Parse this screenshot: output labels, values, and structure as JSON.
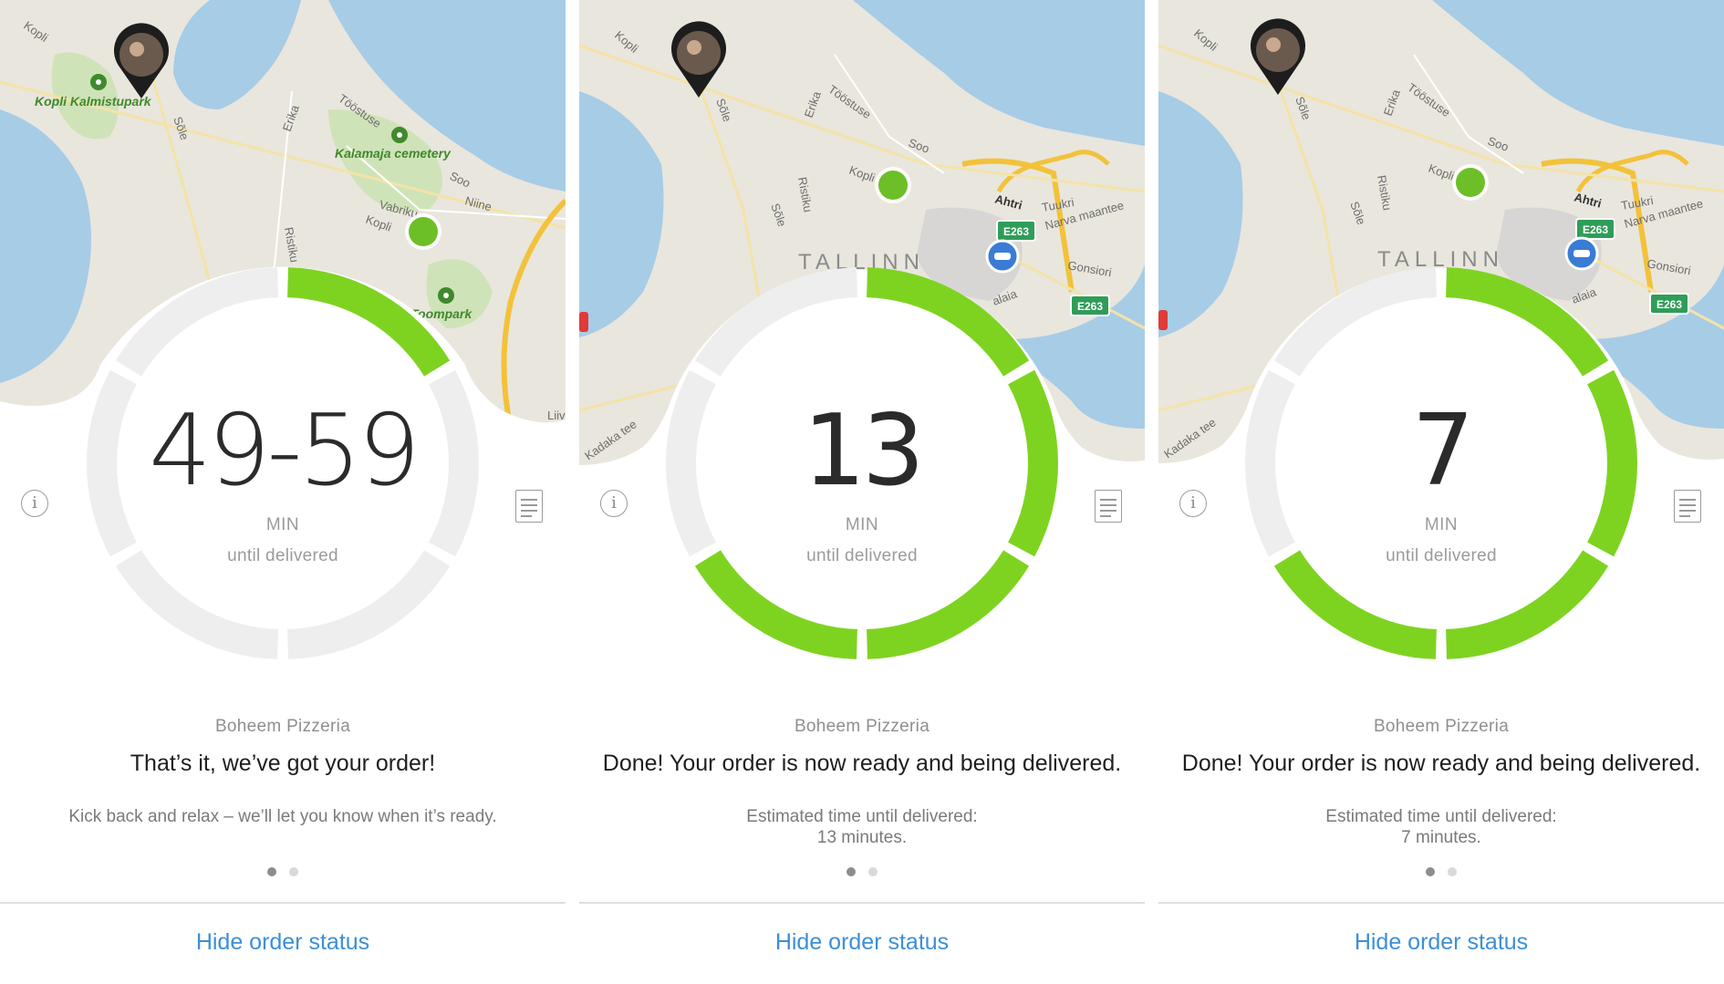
{
  "app": {
    "accent_green": "#7ed321",
    "link_blue": "#3d8fd6",
    "hide_label": "Hide order status",
    "unit_label": "MIN",
    "until_label": "until delivered",
    "info_icon_glyph": "i"
  },
  "panels": [
    {
      "time_value": "49-59",
      "progress": 0.167,
      "restaurant": "Boheem Pizzeria",
      "headline": "That’s it, we’ve got your order!",
      "subtext": [
        "Kick back and relax – we’ll let you know when it’s ready."
      ],
      "page_index": 0,
      "map": {
        "labels": [
          "Kopli",
          "Kopli Kalmistupark",
          "Sõle",
          "Erika",
          "Tööstuse",
          "Kalamaja cemetery",
          "Soo",
          "Niine",
          "Vabriku",
          "Kopli",
          "Ristiku",
          "Toompark",
          "Liiv"
        ],
        "icons": [
          "courier-avatar-pin-icon",
          "destination-dot-icon",
          "park-marker-icon"
        ]
      }
    },
    {
      "time_value": "13",
      "progress": 0.667,
      "restaurant": "Boheem Pizzeria",
      "headline": "Done! Your order is now ready and being delivered.",
      "subtext": [
        "Estimated time until delivered:",
        "13 minutes."
      ],
      "page_index": 0,
      "map": {
        "labels": [
          "Kopli",
          "Sõle",
          "Erika",
          "Tööstuse",
          "Soo",
          "Kopli",
          "Ristiku",
          "Sõle",
          "Ahtri",
          "Tuukri",
          "Narva maantee",
          "TALLINN",
          "Gonsiori",
          "E263",
          "E263",
          "Kadaka tee",
          "alaia"
        ],
        "icons": [
          "courier-avatar-pin-icon",
          "destination-dot-icon",
          "car-marker-icon"
        ]
      }
    },
    {
      "time_value": "7",
      "progress": 0.667,
      "restaurant": "Boheem Pizzeria",
      "headline": "Done! Your order is now ready and being delivered.",
      "subtext": [
        "Estimated time until delivered:",
        "7 minutes."
      ],
      "page_index": 0,
      "map": {
        "labels": [
          "Kopli",
          "Sõle",
          "Erika",
          "Tööstuse",
          "Soo",
          "Kopli",
          "Ristiku",
          "Sõle",
          "Ahtri",
          "Tuukri",
          "Narva maantee",
          "TALLINN",
          "Gonsiori",
          "E263",
          "E263",
          "Kadaka tee",
          "alaia"
        ],
        "icons": [
          "courier-avatar-pin-icon",
          "destination-dot-icon",
          "car-marker-icon"
        ]
      }
    }
  ]
}
